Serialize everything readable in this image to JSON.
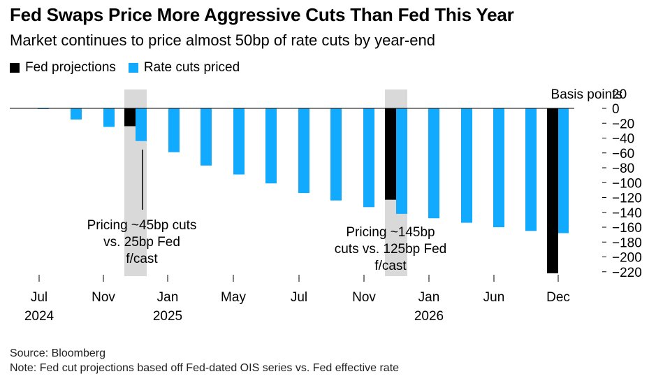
{
  "title": "Fed Swaps Price More Aggressive Cuts Than Fed This Year",
  "subtitle": "Market continues to price almost 50bp of rate cuts by year-end",
  "legend": [
    {
      "label": "Fed projections",
      "color": "#000000"
    },
    {
      "label": "Rate cuts priced",
      "color": "#11aaff"
    }
  ],
  "footer": {
    "source": "Source: Bloomberg",
    "note": "Note: Fed cut projections based off Fed-dated OIS series vs. Fed effective rate"
  },
  "chart_data": {
    "type": "bar",
    "ylabel": "Basis points",
    "ylim": [
      -230,
      20
    ],
    "yticks": [
      20,
      0,
      -20,
      -40,
      -60,
      -80,
      -100,
      -120,
      -140,
      -160,
      -180,
      -200,
      -220
    ],
    "x_tick_labels": [
      {
        "label": "Jul",
        "sub": "2024"
      },
      {
        "label": "Nov",
        "sub": ""
      },
      {
        "label": "Jan",
        "sub": "2025"
      },
      {
        "label": "May",
        "sub": ""
      },
      {
        "label": "Jul",
        "sub": ""
      },
      {
        "label": "Nov",
        "sub": ""
      },
      {
        "label": "Jan",
        "sub": "2026"
      },
      {
        "label": "Jun",
        "sub": ""
      },
      {
        "label": "Dec",
        "sub": ""
      }
    ],
    "series": [
      {
        "name": "Rate cuts priced",
        "color": "#11aaff",
        "values": [
          -1,
          -15,
          -25,
          -44,
          -59,
          -77,
          -89,
          -101,
          -114,
          -124,
          -133,
          -142,
          -148,
          -154,
          -160,
          -165,
          -168
        ]
      },
      {
        "name": "Fed projections",
        "color": "#000000",
        "values": [
          -24,
          -123,
          -222
        ]
      }
    ],
    "annotations": [
      {
        "text_lines": [
          "Pricing ~45bp cuts",
          "vs. 25bp Fed",
          "f/cast"
        ]
      },
      {
        "text_lines": [
          "Pricing ~145bp",
          "cuts vs. 125bp Fed",
          "f/cast"
        ]
      }
    ]
  }
}
